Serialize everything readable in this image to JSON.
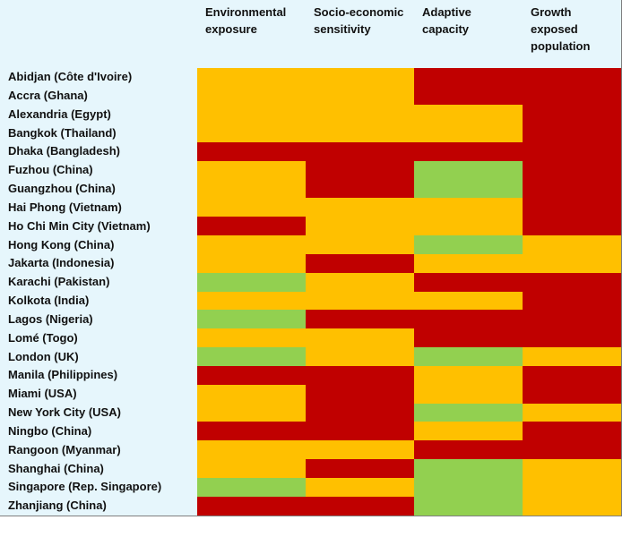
{
  "chart_data": {
    "type": "heatmap",
    "columns": [
      "Environmental exposure",
      "Socio-economic sensitivity",
      "Adaptive capacity",
      "Growth exposed population"
    ],
    "column_lines": [
      [
        "Environmental",
        "exposure"
      ],
      [
        "Socio-economic",
        "sensitivity"
      ],
      [
        "Adaptive",
        "capacity"
      ],
      [
        "Growth",
        "exposed",
        "population"
      ]
    ],
    "levels": {
      "R": "#C00000",
      "A": "#FFC000",
      "G": "#92D050"
    },
    "rows": [
      {
        "label": "Abidjan (Côte d'Ivoire)",
        "values": [
          "A",
          "A",
          "R",
          "R"
        ]
      },
      {
        "label": "Accra (Ghana)",
        "values": [
          "A",
          "A",
          "R",
          "R"
        ]
      },
      {
        "label": "Alexandria (Egypt)",
        "values": [
          "A",
          "A",
          "A",
          "R"
        ]
      },
      {
        "label": "Bangkok (Thailand)",
        "values": [
          "A",
          "A",
          "A",
          "R"
        ]
      },
      {
        "label": "Dhaka (Bangladesh)",
        "values": [
          "R",
          "R",
          "R",
          "R"
        ]
      },
      {
        "label": "Fuzhou (China)",
        "values": [
          "A",
          "R",
          "G",
          "R"
        ]
      },
      {
        "label": "Guangzhou (China)",
        "values": [
          "A",
          "R",
          "G",
          "R"
        ]
      },
      {
        "label": "Hai Phong (Vietnam)",
        "values": [
          "A",
          "A",
          "A",
          "R"
        ]
      },
      {
        "label": "Ho Chi Min City (Vietnam)",
        "values": [
          "R",
          "A",
          "A",
          "R"
        ]
      },
      {
        "label": "Hong Kong (China)",
        "values": [
          "A",
          "A",
          "G",
          "A"
        ]
      },
      {
        "label": "Jakarta (Indonesia)",
        "values": [
          "A",
          "R",
          "A",
          "A"
        ]
      },
      {
        "label": "Karachi (Pakistan)",
        "values": [
          "G",
          "A",
          "R",
          "R"
        ]
      },
      {
        "label": "Kolkota (India)",
        "values": [
          "A",
          "A",
          "A",
          "R"
        ]
      },
      {
        "label": "Lagos (Nigeria)",
        "values": [
          "G",
          "R",
          "R",
          "R"
        ]
      },
      {
        "label": "Lomé (Togo)",
        "values": [
          "A",
          "A",
          "R",
          "R"
        ]
      },
      {
        "label": "London (UK)",
        "values": [
          "G",
          "A",
          "G",
          "A"
        ]
      },
      {
        "label": "Manila (Philippines)",
        "values": [
          "R",
          "R",
          "A",
          "R"
        ]
      },
      {
        "label": "Miami (USA)",
        "values": [
          "A",
          "R",
          "A",
          "R"
        ]
      },
      {
        "label": "New York City (USA)",
        "values": [
          "A",
          "R",
          "G",
          "A"
        ]
      },
      {
        "label": "Ningbo (China)",
        "values": [
          "R",
          "R",
          "A",
          "R"
        ]
      },
      {
        "label": "Rangoon (Myanmar)",
        "values": [
          "A",
          "A",
          "R",
          "R"
        ]
      },
      {
        "label": "Shanghai (China)",
        "values": [
          "A",
          "R",
          "G",
          "A"
        ]
      },
      {
        "label": "Singapore (Rep. Singapore)",
        "values": [
          "G",
          "A",
          "G",
          "A"
        ]
      },
      {
        "label": "Zhanjiang (China)",
        "values": [
          "R",
          "R",
          "G",
          "A"
        ]
      }
    ]
  }
}
